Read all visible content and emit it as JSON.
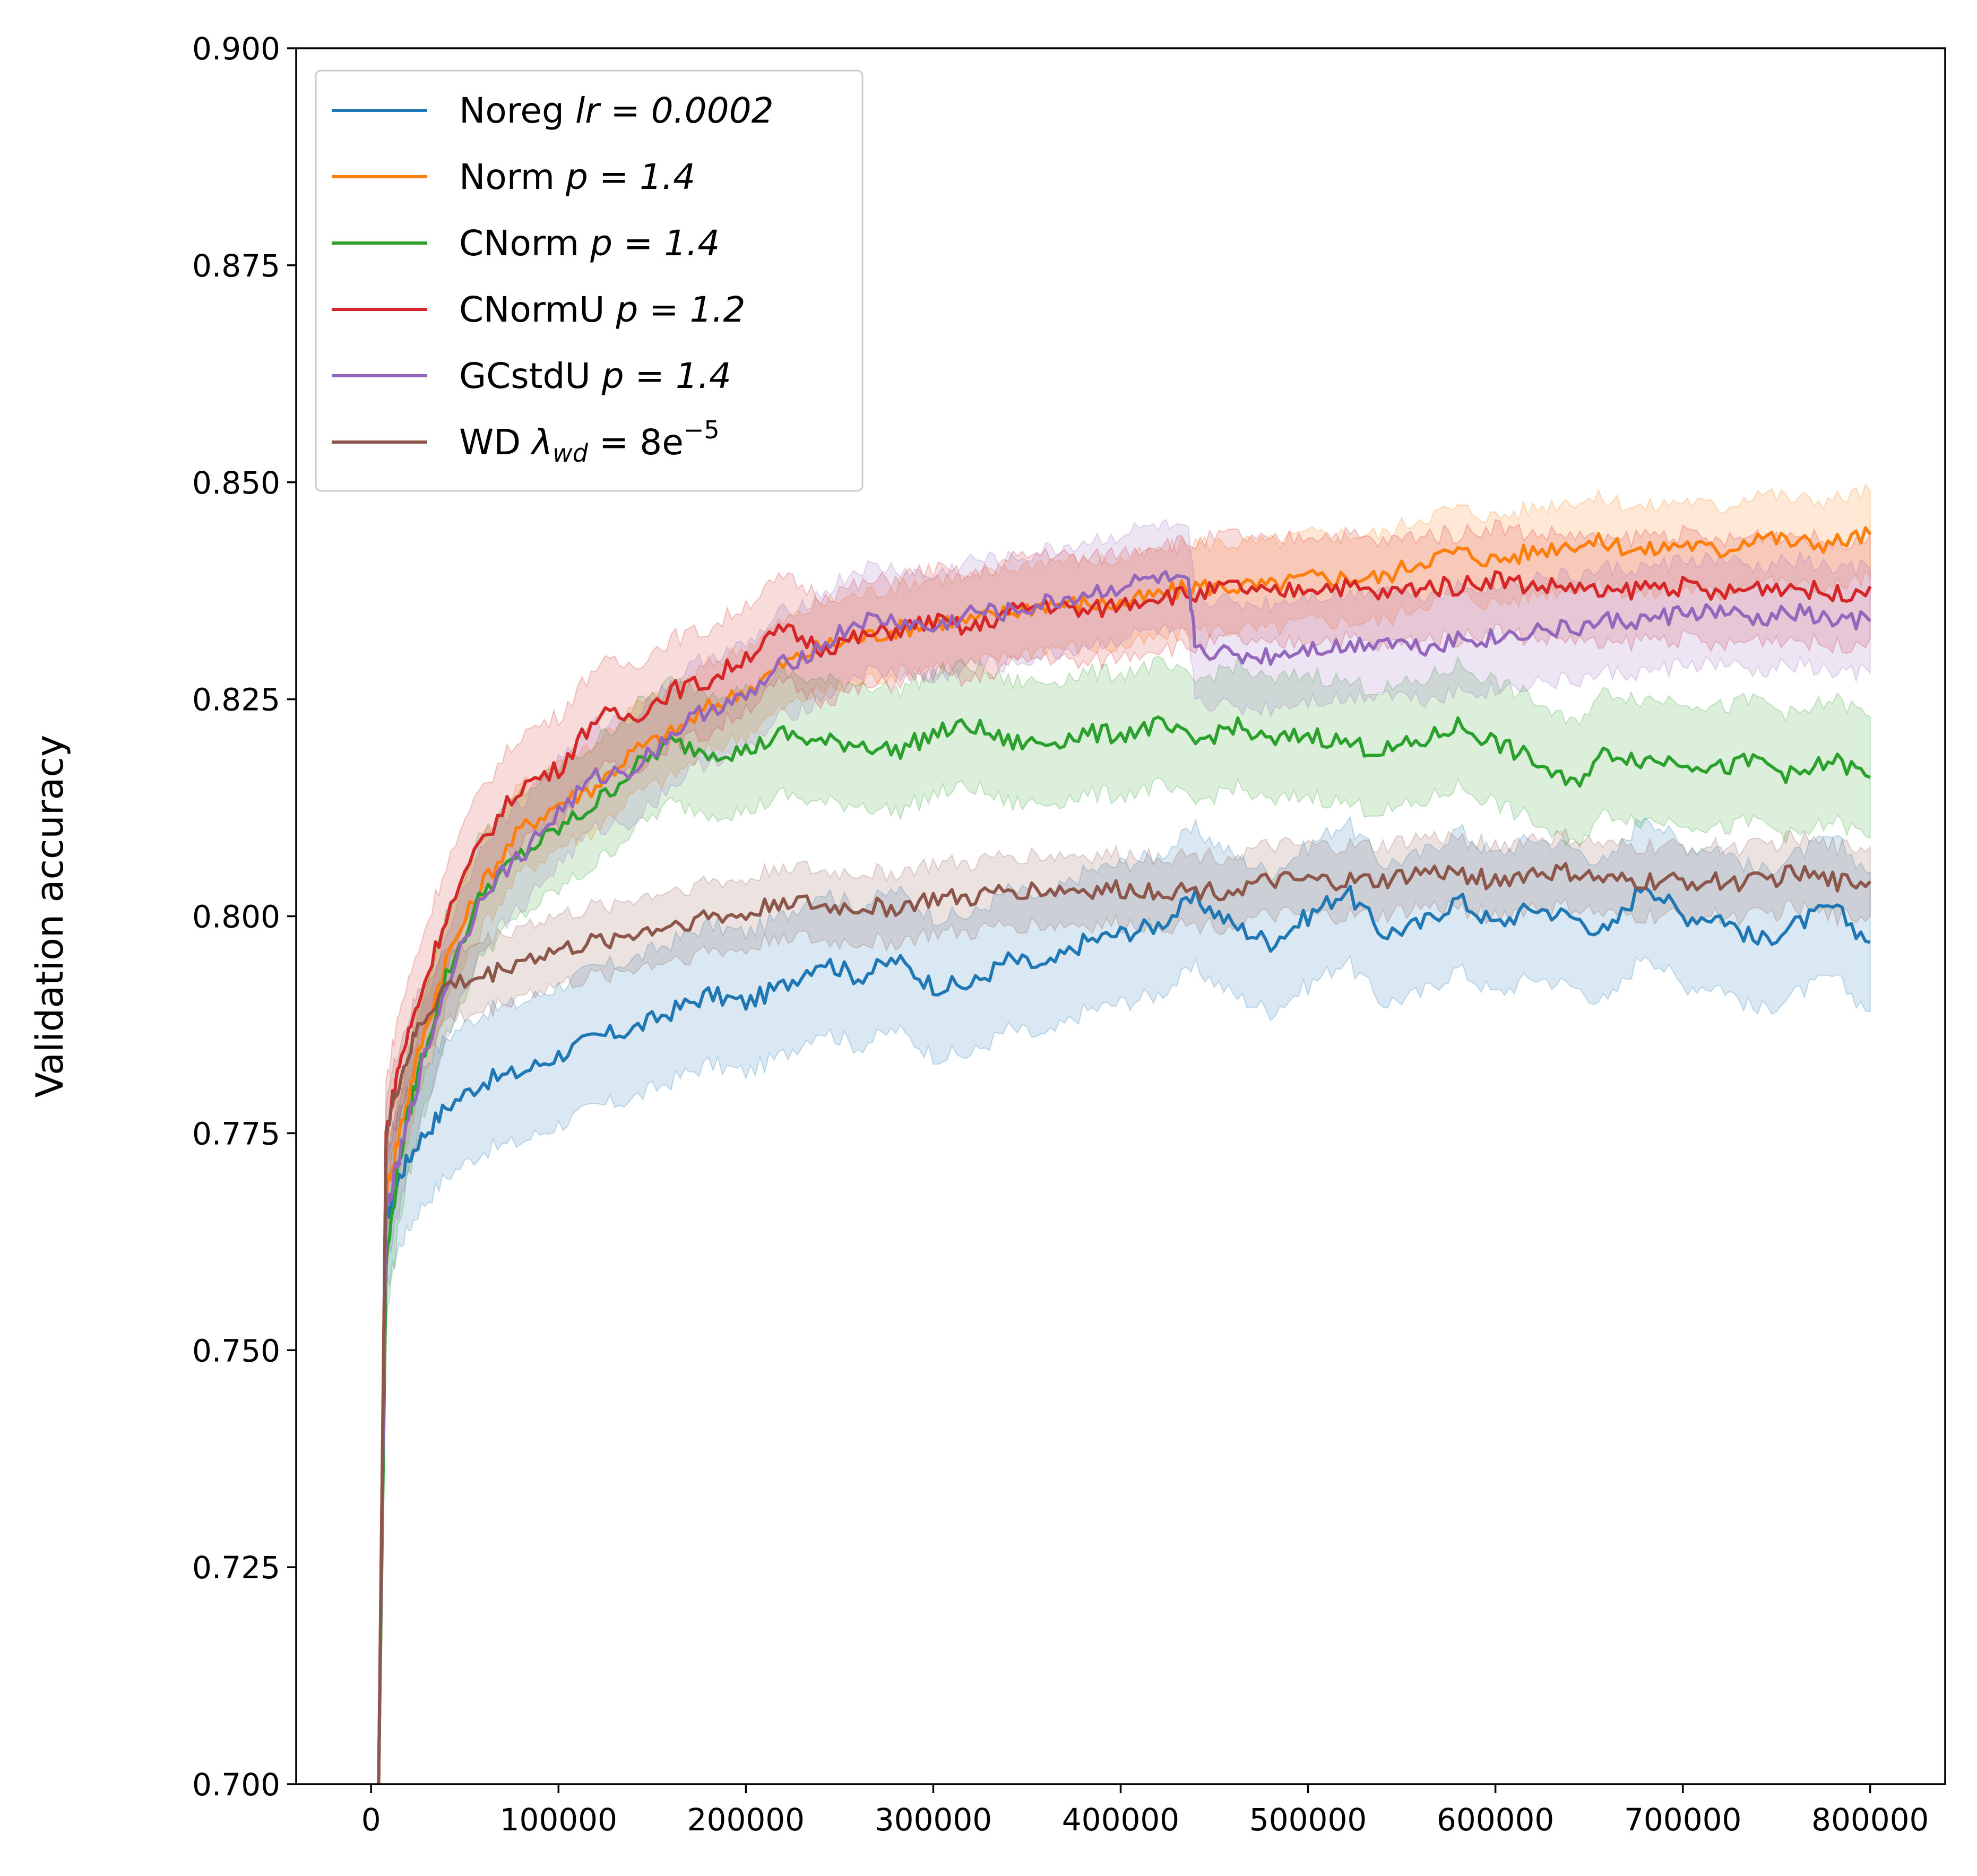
{
  "chart_data": {
    "type": "line",
    "title": "",
    "xlabel": "",
    "ylabel": "Validation accuracy",
    "xlim": [
      -40000,
      840000
    ],
    "ylim": [
      0.7,
      0.9
    ],
    "x_ticks": [
      0,
      100000,
      200000,
      300000,
      400000,
      500000,
      600000,
      700000,
      800000
    ],
    "x_tick_labels": [
      "0",
      "100000",
      "200000",
      "300000",
      "400000",
      "500000",
      "600000",
      "700000",
      "800000"
    ],
    "y_ticks": [
      0.7,
      0.725,
      0.75,
      0.775,
      0.8,
      0.825,
      0.85,
      0.875,
      0.9
    ],
    "y_tick_labels": [
      "0.700",
      "0.725",
      "0.750",
      "0.775",
      "0.800",
      "0.825",
      "0.850",
      "0.875",
      "0.900"
    ],
    "grid": false,
    "legend_position": "top-left",
    "shaded_bands": true,
    "series": [
      {
        "name": "Noreg lr = 0.0002",
        "legend": {
          "base": "Noreg ",
          "math": "lr = 0.0002"
        },
        "color": "#1f77b4",
        "band": 0.008,
        "x": [
          4000,
          8000,
          15000,
          25000,
          40000,
          60000,
          80000,
          100000,
          120000,
          140000,
          160000,
          180000,
          200000,
          220000,
          240000,
          260000,
          280000,
          300000,
          320000,
          340000,
          360000,
          380000,
          400000,
          420000,
          440000,
          460000,
          480000,
          500000,
          520000,
          540000,
          560000,
          580000,
          600000,
          620000,
          640000,
          660000,
          680000,
          700000,
          720000,
          740000,
          760000,
          780000,
          800000
        ],
        "y": [
          0.7,
          0.765,
          0.77,
          0.774,
          0.778,
          0.781,
          0.782,
          0.784,
          0.786,
          0.787,
          0.789,
          0.791,
          0.79,
          0.792,
          0.795,
          0.793,
          0.795,
          0.792,
          0.792,
          0.795,
          0.794,
          0.797,
          0.798,
          0.799,
          0.802,
          0.799,
          0.797,
          0.8,
          0.803,
          0.798,
          0.799,
          0.802,
          0.799,
          0.801,
          0.8,
          0.798,
          0.804,
          0.8,
          0.8,
          0.797,
          0.799,
          0.801,
          0.797
        ]
      },
      {
        "name": "Norm p = 1.4",
        "legend": {
          "base": "Norm ",
          "math": "p = 1.4"
        },
        "color": "#ff7f0e",
        "band": 0.005,
        "x": [
          4000,
          8000,
          15000,
          25000,
          40000,
          60000,
          80000,
          100000,
          120000,
          140000,
          160000,
          180000,
          200000,
          220000,
          240000,
          260000,
          280000,
          300000,
          320000,
          340000,
          360000,
          380000,
          400000,
          420000,
          440000,
          460000,
          480000,
          500000,
          520000,
          540000,
          560000,
          580000,
          600000,
          620000,
          640000,
          660000,
          680000,
          700000,
          720000,
          740000,
          760000,
          780000,
          800000
        ],
        "y": [
          0.7,
          0.768,
          0.775,
          0.784,
          0.795,
          0.804,
          0.81,
          0.813,
          0.815,
          0.819,
          0.821,
          0.824,
          0.826,
          0.829,
          0.831,
          0.832,
          0.833,
          0.834,
          0.834,
          0.835,
          0.836,
          0.836,
          0.836,
          0.837,
          0.838,
          0.838,
          0.838,
          0.839,
          0.839,
          0.839,
          0.841,
          0.842,
          0.841,
          0.842,
          0.843,
          0.843,
          0.842,
          0.843,
          0.842,
          0.844,
          0.843,
          0.843,
          0.844
        ]
      },
      {
        "name": "CNorm p = 1.4",
        "legend": {
          "base": "CNorm ",
          "math": "p = 1.4"
        },
        "color": "#2ca02c",
        "band": 0.007,
        "x": [
          4000,
          8000,
          15000,
          25000,
          40000,
          60000,
          80000,
          100000,
          120000,
          140000,
          160000,
          180000,
          200000,
          220000,
          240000,
          260000,
          280000,
          300000,
          320000,
          340000,
          360000,
          380000,
          400000,
          420000,
          440000,
          460000,
          480000,
          500000,
          520000,
          540000,
          560000,
          580000,
          600000,
          620000,
          640000,
          660000,
          680000,
          700000,
          720000,
          740000,
          760000,
          780000,
          800000
        ],
        "y": [
          0.7,
          0.76,
          0.772,
          0.782,
          0.793,
          0.803,
          0.807,
          0.81,
          0.813,
          0.817,
          0.82,
          0.819,
          0.819,
          0.821,
          0.82,
          0.82,
          0.819,
          0.821,
          0.822,
          0.82,
          0.82,
          0.821,
          0.821,
          0.822,
          0.82,
          0.822,
          0.82,
          0.821,
          0.82,
          0.819,
          0.82,
          0.822,
          0.82,
          0.818,
          0.815,
          0.819,
          0.818,
          0.818,
          0.817,
          0.818,
          0.816,
          0.818,
          0.816
        ]
      },
      {
        "name": "CNormU p = 1.2",
        "legend": {
          "base": "CNormU ",
          "math": "p = 1.2"
        },
        "color": "#d62728",
        "band": 0.006,
        "x": [
          4000,
          8000,
          15000,
          25000,
          40000,
          60000,
          80000,
          100000,
          120000,
          140000,
          160000,
          180000,
          200000,
          220000,
          240000,
          260000,
          280000,
          300000,
          320000,
          340000,
          360000,
          380000,
          400000,
          420000,
          440000,
          460000,
          480000,
          500000,
          520000,
          540000,
          560000,
          580000,
          600000,
          620000,
          640000,
          660000,
          680000,
          700000,
          720000,
          740000,
          760000,
          780000,
          800000
        ],
        "y": [
          0.7,
          0.775,
          0.783,
          0.79,
          0.8,
          0.809,
          0.815,
          0.817,
          0.823,
          0.823,
          0.826,
          0.827,
          0.83,
          0.833,
          0.831,
          0.832,
          0.833,
          0.834,
          0.833,
          0.835,
          0.836,
          0.835,
          0.836,
          0.837,
          0.837,
          0.838,
          0.837,
          0.838,
          0.838,
          0.837,
          0.838,
          0.838,
          0.839,
          0.838,
          0.838,
          0.837,
          0.838,
          0.838,
          0.837,
          0.838,
          0.838,
          0.837,
          0.838
        ]
      },
      {
        "name": "GCstdU p = 1.4",
        "legend": {
          "base": "GCstdU ",
          "math": "p = 1.4"
        },
        "color": "#9467bd",
        "band": 0.006,
        "x": [
          4000,
          8000,
          15000,
          25000,
          40000,
          60000,
          80000,
          100000,
          120000,
          140000,
          160000,
          180000,
          200000,
          220000,
          240000,
          260000,
          280000,
          300000,
          320000,
          340000,
          360000,
          380000,
          400000,
          420000,
          436000,
          440000,
          460000,
          480000,
          500000,
          520000,
          540000,
          560000,
          580000,
          600000,
          620000,
          640000,
          660000,
          680000,
          700000,
          720000,
          740000,
          760000,
          780000,
          800000
        ],
        "y": [
          0.7,
          0.766,
          0.772,
          0.781,
          0.792,
          0.803,
          0.807,
          0.812,
          0.816,
          0.817,
          0.821,
          0.824,
          0.825,
          0.829,
          0.831,
          0.834,
          0.834,
          0.833,
          0.835,
          0.835,
          0.836,
          0.837,
          0.838,
          0.839,
          0.838,
          0.831,
          0.83,
          0.83,
          0.831,
          0.831,
          0.832,
          0.831,
          0.832,
          0.832,
          0.833,
          0.833,
          0.834,
          0.834,
          0.835,
          0.835,
          0.834,
          0.835,
          0.834,
          0.834
        ]
      },
      {
        "name": "WD λwd = 8e−5",
        "legend": {
          "base": "WD ",
          "math": "λ",
          "sub": "wd",
          "mid": " = 8e",
          "sup": "−5"
        },
        "color": "#8c564b",
        "band": 0.004,
        "x": [
          4000,
          8000,
          15000,
          25000,
          40000,
          60000,
          80000,
          100000,
          120000,
          140000,
          160000,
          180000,
          200000,
          220000,
          240000,
          260000,
          280000,
          300000,
          320000,
          340000,
          360000,
          380000,
          400000,
          420000,
          440000,
          460000,
          480000,
          500000,
          520000,
          540000,
          560000,
          580000,
          600000,
          620000,
          640000,
          660000,
          680000,
          700000,
          720000,
          740000,
          760000,
          780000,
          800000
        ],
        "y": [
          0.7,
          0.775,
          0.781,
          0.787,
          0.792,
          0.793,
          0.795,
          0.796,
          0.797,
          0.798,
          0.799,
          0.8,
          0.8,
          0.802,
          0.801,
          0.801,
          0.801,
          0.802,
          0.802,
          0.803,
          0.803,
          0.803,
          0.803,
          0.803,
          0.803,
          0.803,
          0.804,
          0.804,
          0.804,
          0.804,
          0.805,
          0.805,
          0.804,
          0.805,
          0.805,
          0.804,
          0.804,
          0.804,
          0.804,
          0.804,
          0.805,
          0.804,
          0.804
        ]
      }
    ]
  }
}
